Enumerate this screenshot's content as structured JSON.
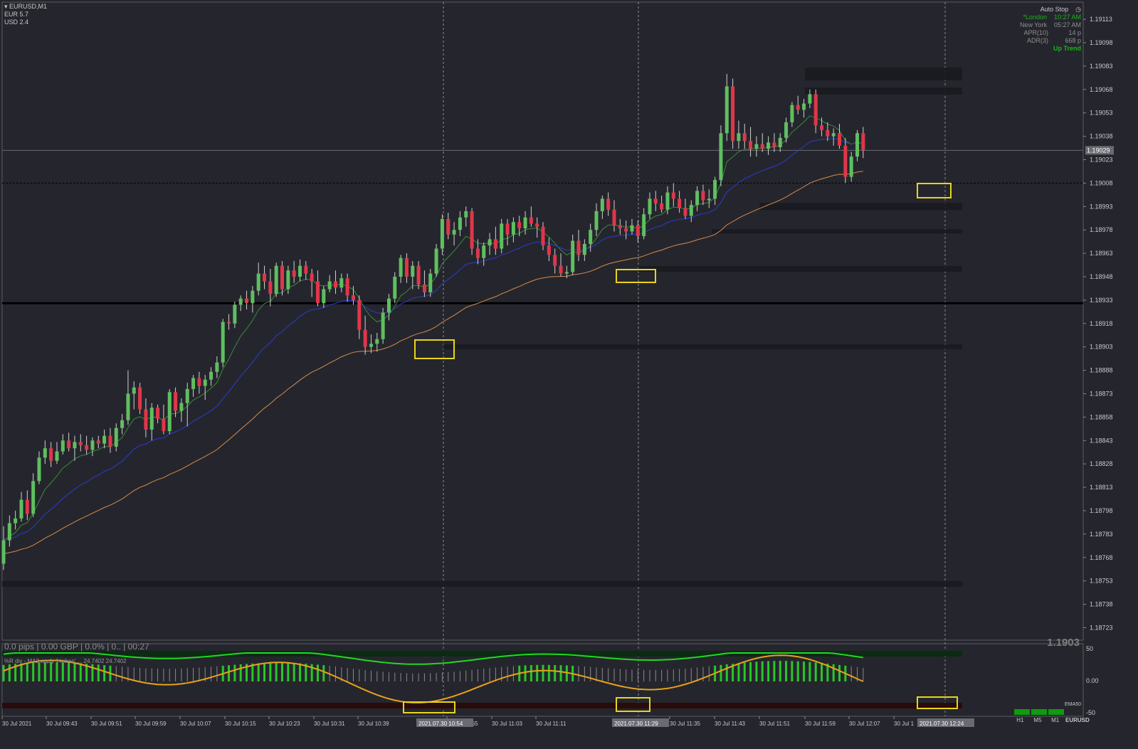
{
  "header": {
    "symbol": "EURUSD,M1",
    "eur": "EUR 5.7",
    "usd": "USD 2.4"
  },
  "info_panel": {
    "auto_stop": "Auto Stop",
    "london_label": "*London",
    "london_time": "10:27 AM",
    "ny_label": "New York",
    "ny_time": "05:27 AM",
    "apr_label": "APR(10)",
    "apr_value": "14 p",
    "adr_label": "ADR(3)",
    "adr_value": "668 p",
    "trend": "Up Trend"
  },
  "status": {
    "profit_bar": "0.0 pips | 0.00 GBP | 0.0% | 0.. | 00:27",
    "big_price": "1.1903",
    "current_price_tag": "1.19029"
  },
  "indicator": {
    "label": "%R div - MA2 apply 'Heiken' ... 24.7402 24.7402",
    "levels": [
      "50",
      "0.00",
      "-50"
    ]
  },
  "tf_panel": {
    "ema_label": "EMA50",
    "timeframes": [
      "H1",
      "M5",
      "M1"
    ],
    "symbol": "EURUSD"
  },
  "colors": {
    "background": "#25262d",
    "bull_candle": "#5fbf5f",
    "bear_candle": "#e0364a",
    "ema_fast": "#3a8a3a",
    "ema_mid": "#2b3bd0",
    "ema_slow": "#d88a4a",
    "highlight_box": "#e8d51a",
    "osc_green": "#22d822",
    "osc_orange": "#e8a21a"
  },
  "chart_data": {
    "type": "candlestick",
    "symbol": "EURUSD",
    "timeframe": "M1",
    "ylim": [
      1.18715,
      1.19124
    ],
    "y_ticks": [
      "1.19113",
      "1.19098",
      "1.19083",
      "1.19068",
      "1.19053",
      "1.19038",
      "1.19023",
      "1.19008",
      "1.18993",
      "1.18978",
      "1.18963",
      "1.18948",
      "1.18933",
      "1.18918",
      "1.18903",
      "1.18888",
      "1.18873",
      "1.18858",
      "1.18843",
      "1.18828",
      "1.18813",
      "1.18798",
      "1.18783",
      "1.18768",
      "1.18753",
      "1.18738",
      "1.18723"
    ],
    "x_ticks": [
      "30 Jul 2021",
      "30 Jul 09:43",
      "30 Jul 09:51",
      "30 Jul 09:59",
      "30 Jul 10:07",
      "30 Jul 10:15",
      "30 Jul 10:23",
      "30 Jul 10:31",
      "30 Jul 10:39",
      "30 Jul 10:55",
      "30 Jul 11:03",
      "30 Jul 11:11",
      "30 Jul 11:35",
      "30 Jul 11:43",
      "30 Jul 11:51",
      "30 Jul 11:59",
      "30 Jul 12:07",
      "30 Jul 1"
    ],
    "x_markers": [
      "2021.07.30 10:54",
      "2021.07.30 11:29",
      "2021.07.30 12:24"
    ],
    "current_price": 1.19029,
    "support_level": 1.18931,
    "dashed_level": 1.19008,
    "zone_bars": [
      1.19078,
      1.19067,
      1.18993,
      1.18977,
      1.18953,
      1.18903,
      1.18751
    ],
    "ohlc": [
      [
        1.18764,
        1.18788,
        1.1876,
        1.18779
      ],
      [
        1.18779,
        1.18795,
        1.18775,
        1.1879
      ],
      [
        1.1879,
        1.18798,
        1.18786,
        1.18793
      ],
      [
        1.18793,
        1.1881,
        1.18791,
        1.18805
      ],
      [
        1.18805,
        1.18811,
        1.18792,
        1.18796
      ],
      [
        1.18796,
        1.18822,
        1.18794,
        1.18817
      ],
      [
        1.18817,
        1.18836,
        1.18815,
        1.18832
      ],
      [
        1.18832,
        1.18843,
        1.18828,
        1.18838
      ],
      [
        1.18838,
        1.18842,
        1.18826,
        1.1883
      ],
      [
        1.1883,
        1.18842,
        1.18828,
        1.18836
      ],
      [
        1.18836,
        1.18847,
        1.18834,
        1.18843
      ],
      [
        1.18843,
        1.18848,
        1.18836,
        1.18838
      ],
      [
        1.18838,
        1.18846,
        1.1883,
        1.18842
      ],
      [
        1.18842,
        1.18847,
        1.18836,
        1.1884
      ],
      [
        1.1884,
        1.18846,
        1.18834,
        1.18837
      ],
      [
        1.18837,
        1.18845,
        1.18833,
        1.18843
      ],
      [
        1.18843,
        1.18846,
        1.18838,
        1.18841
      ],
      [
        1.18841,
        1.1885,
        1.18838,
        1.18846
      ],
      [
        1.18846,
        1.18851,
        1.18835,
        1.18839
      ],
      [
        1.18839,
        1.18854,
        1.18836,
        1.18851
      ],
      [
        1.18851,
        1.1886,
        1.18847,
        1.18856
      ],
      [
        1.18856,
        1.18888,
        1.18853,
        1.18873
      ],
      [
        1.18873,
        1.18881,
        1.18863,
        1.18877
      ],
      [
        1.18877,
        1.1888,
        1.1886,
        1.18863
      ],
      [
        1.18863,
        1.1887,
        1.18845,
        1.1885
      ],
      [
        1.1885,
        1.18867,
        1.18843,
        1.18864
      ],
      [
        1.18864,
        1.18866,
        1.18854,
        1.18857
      ],
      [
        1.18857,
        1.18866,
        1.18847,
        1.18849
      ],
      [
        1.18849,
        1.18876,
        1.18847,
        1.18874
      ],
      [
        1.18874,
        1.18877,
        1.18858,
        1.18862
      ],
      [
        1.18862,
        1.1887,
        1.18855,
        1.18867
      ],
      [
        1.18867,
        1.1888,
        1.18852,
        1.18876
      ],
      [
        1.18876,
        1.18885,
        1.18871,
        1.18883
      ],
      [
        1.18883,
        1.18887,
        1.18873,
        1.18878
      ],
      [
        1.18878,
        1.18885,
        1.18869,
        1.18882
      ],
      [
        1.18882,
        1.1889,
        1.18878,
        1.18887
      ],
      [
        1.18887,
        1.18897,
        1.18883,
        1.18893
      ],
      [
        1.18893,
        1.18921,
        1.1889,
        1.18919
      ],
      [
        1.18919,
        1.18924,
        1.18914,
        1.18918
      ],
      [
        1.18918,
        1.18932,
        1.18915,
        1.1893
      ],
      [
        1.1893,
        1.18936,
        1.18926,
        1.18934
      ],
      [
        1.18934,
        1.18939,
        1.18927,
        1.18931
      ],
      [
        1.18931,
        1.18942,
        1.18925,
        1.18939
      ],
      [
        1.18939,
        1.18957,
        1.18936,
        1.1895
      ],
      [
        1.1895,
        1.18955,
        1.1894,
        1.18945
      ],
      [
        1.18945,
        1.18953,
        1.18929,
        1.18937
      ],
      [
        1.18937,
        1.18957,
        1.18935,
        1.18955
      ],
      [
        1.18955,
        1.18958,
        1.18936,
        1.1894
      ],
      [
        1.1894,
        1.18955,
        1.18937,
        1.18952
      ],
      [
        1.18952,
        1.18958,
        1.18944,
        1.18948
      ],
      [
        1.18948,
        1.18959,
        1.18945,
        1.18955
      ],
      [
        1.18955,
        1.18958,
        1.18946,
        1.1895
      ],
      [
        1.1895,
        1.18953,
        1.18935,
        1.18945
      ],
      [
        1.18945,
        1.18952,
        1.18929,
        1.18931
      ],
      [
        1.18931,
        1.18942,
        1.18928,
        1.1894
      ],
      [
        1.1894,
        1.18949,
        1.18938,
        1.18945
      ],
      [
        1.18945,
        1.18952,
        1.18937,
        1.18941
      ],
      [
        1.18941,
        1.1895,
        1.18938,
        1.18947
      ],
      [
        1.18947,
        1.1895,
        1.18932,
        1.18936
      ],
      [
        1.18936,
        1.18942,
        1.1893,
        1.18933
      ],
      [
        1.18933,
        1.18936,
        1.18908,
        1.18914
      ],
      [
        1.18914,
        1.18923,
        1.18898,
        1.18903
      ],
      [
        1.18903,
        1.18911,
        1.18899,
        1.18905
      ],
      [
        1.18905,
        1.18912,
        1.189,
        1.18908
      ],
      [
        1.18908,
        1.18928,
        1.18905,
        1.18925
      ],
      [
        1.18925,
        1.18937,
        1.1892,
        1.18934
      ],
      [
        1.18934,
        1.18951,
        1.18931,
        1.18948
      ],
      [
        1.18948,
        1.18962,
        1.18944,
        1.1896
      ],
      [
        1.1896,
        1.18963,
        1.18944,
        1.18948
      ],
      [
        1.18948,
        1.18958,
        1.1894,
        1.18955
      ],
      [
        1.18955,
        1.18958,
        1.1894,
        1.18943
      ],
      [
        1.18943,
        1.18952,
        1.18935,
        1.18938
      ],
      [
        1.18938,
        1.18953,
        1.18935,
        1.1895
      ],
      [
        1.1895,
        1.18969,
        1.18948,
        1.18966
      ],
      [
        1.18966,
        1.18988,
        1.18962,
        1.18985
      ],
      [
        1.18985,
        1.18989,
        1.18972,
        1.18975
      ],
      [
        1.18975,
        1.18983,
        1.18968,
        1.18978
      ],
      [
        1.18978,
        1.1899,
        1.18974,
        1.18986
      ],
      [
        1.18986,
        1.18993,
        1.1898,
        1.1899
      ],
      [
        1.1899,
        1.18992,
        1.18962,
        1.18966
      ],
      [
        1.18966,
        1.18972,
        1.18956,
        1.1896
      ],
      [
        1.1896,
        1.1897,
        1.18955,
        1.18968
      ],
      [
        1.18968,
        1.18976,
        1.18962,
        1.18972
      ],
      [
        1.18972,
        1.1898,
        1.18962,
        1.18966
      ],
      [
        1.18966,
        1.18985,
        1.18963,
        1.18982
      ],
      [
        1.18982,
        1.18985,
        1.18968,
        1.18975
      ],
      [
        1.18975,
        1.18986,
        1.1897,
        1.18983
      ],
      [
        1.18983,
        1.18987,
        1.18974,
        1.18979
      ],
      [
        1.18979,
        1.1899,
        1.18975,
        1.18986
      ],
      [
        1.18986,
        1.18993,
        1.1898,
        1.18982
      ],
      [
        1.18982,
        1.18986,
        1.18973,
        1.1898
      ],
      [
        1.1898,
        1.18983,
        1.18965,
        1.18968
      ],
      [
        1.18968,
        1.18973,
        1.18958,
        1.18962
      ],
      [
        1.18962,
        1.18966,
        1.1895,
        1.18955
      ],
      [
        1.18955,
        1.18963,
        1.18948,
        1.1895
      ],
      [
        1.1895,
        1.18955,
        1.18947,
        1.18951
      ],
      [
        1.18951,
        1.18975,
        1.18949,
        1.18971
      ],
      [
        1.18971,
        1.18978,
        1.18958,
        1.18962
      ],
      [
        1.18962,
        1.18972,
        1.18958,
        1.18969
      ],
      [
        1.18969,
        1.18982,
        1.18964,
        1.18978
      ],
      [
        1.18978,
        1.18995,
        1.18974,
        1.1899
      ],
      [
        1.1899,
        1.19,
        1.18985,
        1.18998
      ],
      [
        1.18998,
        1.19002,
        1.18987,
        1.18991
      ],
      [
        1.18991,
        1.18997,
        1.18977,
        1.18981
      ],
      [
        1.18981,
        1.18985,
        1.18975,
        1.18979
      ],
      [
        1.18979,
        1.18984,
        1.18972,
        1.18977
      ],
      [
        1.18977,
        1.18985,
        1.18975,
        1.18981
      ],
      [
        1.18981,
        1.18984,
        1.1897,
        1.18974
      ],
      [
        1.18974,
        1.18992,
        1.18972,
        1.18988
      ],
      [
        1.18988,
        1.19002,
        1.18985,
        1.18998
      ],
      [
        1.18998,
        1.19003,
        1.1899,
        1.18995
      ],
      [
        1.18995,
        1.19,
        1.18989,
        1.18991
      ],
      [
        1.18991,
        1.19006,
        1.18988,
        1.19002
      ],
      [
        1.19002,
        1.19008,
        1.18993,
        1.18998
      ],
      [
        1.18998,
        1.19003,
        1.18989,
        1.18992
      ],
      [
        1.18992,
        1.18998,
        1.18985,
        1.18987
      ],
      [
        1.18987,
        1.18997,
        1.18983,
        1.18994
      ],
      [
        1.18994,
        1.19006,
        1.1899,
        1.19003
      ],
      [
        1.19003,
        1.19007,
        1.18994,
        1.18997
      ],
      [
        1.18997,
        1.19004,
        1.18992,
        1.18998
      ],
      [
        1.18998,
        1.19012,
        1.18994,
        1.1901
      ],
      [
        1.1901,
        1.19045,
        1.19006,
        1.1904
      ],
      [
        1.1904,
        1.19078,
        1.19035,
        1.1907
      ],
      [
        1.1907,
        1.19075,
        1.1903,
        1.19035
      ],
      [
        1.19035,
        1.19048,
        1.1903,
        1.1904
      ],
      [
        1.1904,
        1.19046,
        1.1903,
        1.19035
      ],
      [
        1.19035,
        1.19044,
        1.19025,
        1.1903
      ],
      [
        1.1903,
        1.19038,
        1.19025,
        1.19033
      ],
      [
        1.19033,
        1.1904,
        1.19028,
        1.1903
      ],
      [
        1.1903,
        1.19038,
        1.19026,
        1.19034
      ],
      [
        1.19034,
        1.1904,
        1.19028,
        1.19031
      ],
      [
        1.19031,
        1.1904,
        1.19028,
        1.19037
      ],
      [
        1.19037,
        1.1905,
        1.19034,
        1.19047
      ],
      [
        1.19047,
        1.1906,
        1.19044,
        1.19058
      ],
      [
        1.19058,
        1.19064,
        1.19052,
        1.19055
      ],
      [
        1.19055,
        1.19062,
        1.1905,
        1.19059
      ],
      [
        1.19059,
        1.19068,
        1.19056,
        1.19065
      ],
      [
        1.19065,
        1.19068,
        1.1904,
        1.19045
      ],
      [
        1.19045,
        1.1905,
        1.19038,
        1.19042
      ],
      [
        1.19042,
        1.19047,
        1.19035,
        1.19038
      ],
      [
        1.19038,
        1.19043,
        1.19032,
        1.1904
      ],
      [
        1.1904,
        1.19046,
        1.1903,
        1.19032
      ],
      [
        1.19032,
        1.19037,
        1.19008,
        1.19012
      ],
      [
        1.19012,
        1.19028,
        1.19009,
        1.19025
      ],
      [
        1.19025,
        1.19042,
        1.19022,
        1.1904
      ],
      [
        1.1904,
        1.19044,
        1.19024,
        1.19029
      ]
    ],
    "ema_fast": "EMA (green)",
    "ema_mid": "EMA (blue)",
    "ema_slow": "EMA (orange)",
    "highlight_candles": [
      62,
      96,
      145
    ]
  }
}
